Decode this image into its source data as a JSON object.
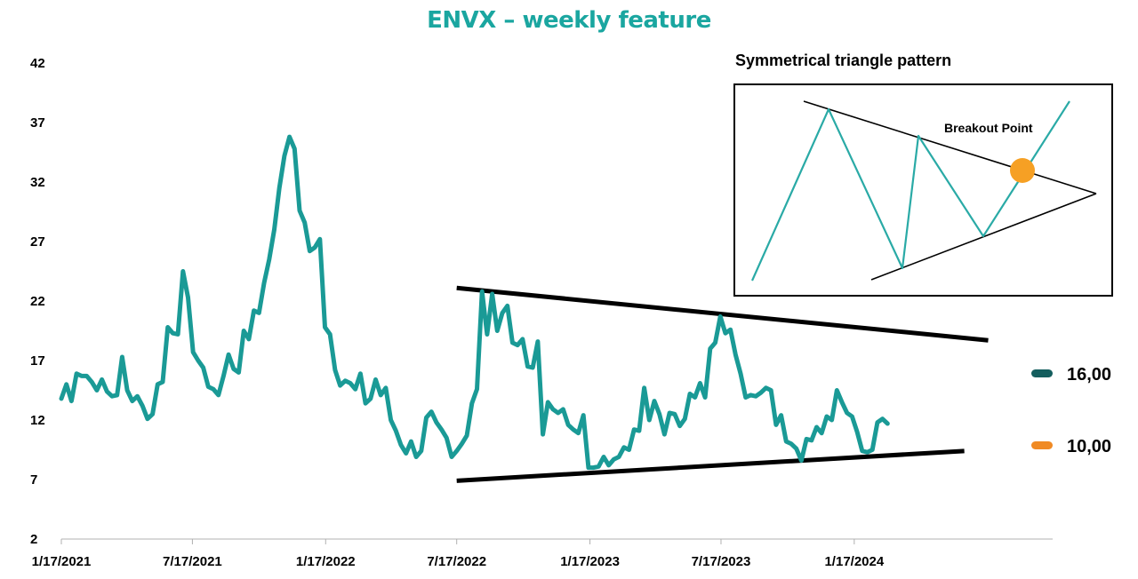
{
  "title": "ENVX – weekly feature",
  "colors": {
    "series": "#1a9a96",
    "trend": "#000000",
    "legend_dark": "#145e5e",
    "legend_orange": "#f08a24",
    "inset_line": "#2aaaa6",
    "breakout_dot": "#f6a024"
  },
  "chart_data": {
    "type": "line",
    "title": "ENVX – weekly feature",
    "xlabel": "",
    "ylabel": "",
    "x_tick_labels": [
      "1/17/2021",
      "7/17/2021",
      "1/17/2022",
      "7/17/2022",
      "1/17/2023",
      "7/17/2023",
      "1/17/2024"
    ],
    "xlim": [
      "2021-01-17",
      "2024-10-17"
    ],
    "y_ticks": [
      2,
      7,
      12,
      17,
      22,
      27,
      32,
      37,
      42
    ],
    "ylim": [
      2,
      42
    ],
    "grid": false,
    "series": [
      {
        "name": "",
        "points": [
          [
            "2021-01-17",
            13.8
          ],
          [
            "2021-01-24",
            15.0
          ],
          [
            "2021-01-31",
            13.6
          ],
          [
            "2021-02-07",
            15.9
          ],
          [
            "2021-02-14",
            15.7
          ],
          [
            "2021-02-21",
            15.7
          ],
          [
            "2021-02-28",
            15.2
          ],
          [
            "2021-03-07",
            14.5
          ],
          [
            "2021-03-14",
            15.4
          ],
          [
            "2021-03-21",
            14.4
          ],
          [
            "2021-03-28",
            14.0
          ],
          [
            "2021-04-04",
            14.1
          ],
          [
            "2021-04-11",
            17.3
          ],
          [
            "2021-04-18",
            14.5
          ],
          [
            "2021-04-25",
            13.6
          ],
          [
            "2021-05-02",
            14.0
          ],
          [
            "2021-05-09",
            13.2
          ],
          [
            "2021-05-16",
            12.1
          ],
          [
            "2021-05-23",
            12.5
          ],
          [
            "2021-05-30",
            15.0
          ],
          [
            "2021-06-06",
            15.2
          ],
          [
            "2021-06-13",
            19.8
          ],
          [
            "2021-06-20",
            19.3
          ],
          [
            "2021-06-27",
            19.2
          ],
          [
            "2021-07-04",
            24.5
          ],
          [
            "2021-07-11",
            22.3
          ],
          [
            "2021-07-18",
            17.7
          ],
          [
            "2021-07-25",
            17.0
          ],
          [
            "2021-08-01",
            16.4
          ],
          [
            "2021-08-08",
            14.8
          ],
          [
            "2021-08-15",
            14.6
          ],
          [
            "2021-08-22",
            14.1
          ],
          [
            "2021-08-29",
            15.7
          ],
          [
            "2021-09-05",
            17.5
          ],
          [
            "2021-09-12",
            16.3
          ],
          [
            "2021-09-19",
            16.0
          ],
          [
            "2021-09-26",
            19.5
          ],
          [
            "2021-10-03",
            18.8
          ],
          [
            "2021-10-10",
            21.2
          ],
          [
            "2021-10-17",
            21.0
          ],
          [
            "2021-10-24",
            23.5
          ],
          [
            "2021-10-31",
            25.5
          ],
          [
            "2021-11-07",
            28.0
          ],
          [
            "2021-11-14",
            31.5
          ],
          [
            "2021-11-21",
            34.2
          ],
          [
            "2021-11-28",
            35.8
          ],
          [
            "2021-12-05",
            34.8
          ],
          [
            "2021-12-12",
            29.6
          ],
          [
            "2021-12-19",
            28.6
          ],
          [
            "2021-12-26",
            26.2
          ],
          [
            "2022-01-02",
            26.5
          ],
          [
            "2022-01-09",
            27.2
          ],
          [
            "2022-01-16",
            19.8
          ],
          [
            "2022-01-23",
            19.2
          ],
          [
            "2022-01-30",
            16.2
          ],
          [
            "2022-02-06",
            14.9
          ],
          [
            "2022-02-13",
            15.3
          ],
          [
            "2022-02-20",
            15.1
          ],
          [
            "2022-02-27",
            14.6
          ],
          [
            "2022-03-06",
            15.9
          ],
          [
            "2022-03-13",
            13.4
          ],
          [
            "2022-03-20",
            13.8
          ],
          [
            "2022-03-27",
            15.4
          ],
          [
            "2022-04-03",
            14.1
          ],
          [
            "2022-04-10",
            14.7
          ],
          [
            "2022-04-17",
            12.0
          ],
          [
            "2022-04-24",
            11.1
          ],
          [
            "2022-05-01",
            9.9
          ],
          [
            "2022-05-08",
            9.2
          ],
          [
            "2022-05-15",
            10.2
          ],
          [
            "2022-05-22",
            8.9
          ],
          [
            "2022-05-29",
            9.4
          ],
          [
            "2022-06-05",
            12.2
          ],
          [
            "2022-06-12",
            12.7
          ],
          [
            "2022-06-19",
            11.8
          ],
          [
            "2022-06-26",
            11.2
          ],
          [
            "2022-07-03",
            10.5
          ],
          [
            "2022-07-10",
            8.9
          ],
          [
            "2022-07-17",
            9.4
          ],
          [
            "2022-07-24",
            10.0
          ],
          [
            "2022-07-31",
            10.7
          ],
          [
            "2022-08-07",
            13.4
          ],
          [
            "2022-08-14",
            14.6
          ],
          [
            "2022-08-21",
            22.8
          ],
          [
            "2022-08-28",
            19.2
          ],
          [
            "2022-09-04",
            22.6
          ],
          [
            "2022-09-11",
            19.5
          ],
          [
            "2022-09-18",
            21.0
          ],
          [
            "2022-09-25",
            21.6
          ],
          [
            "2022-10-02",
            18.5
          ],
          [
            "2022-10-09",
            18.3
          ],
          [
            "2022-10-16",
            18.8
          ],
          [
            "2022-10-23",
            16.5
          ],
          [
            "2022-10-30",
            16.4
          ],
          [
            "2022-11-06",
            18.6
          ],
          [
            "2022-11-13",
            10.8
          ],
          [
            "2022-11-20",
            13.5
          ],
          [
            "2022-11-27",
            12.9
          ],
          [
            "2022-12-04",
            12.6
          ],
          [
            "2022-12-11",
            12.9
          ],
          [
            "2022-12-18",
            11.6
          ],
          [
            "2022-12-25",
            11.2
          ],
          [
            "2023-01-01",
            10.9
          ],
          [
            "2023-01-08",
            12.4
          ],
          [
            "2023-01-15",
            8.0
          ],
          [
            "2023-01-22",
            8.0
          ],
          [
            "2023-01-29",
            8.1
          ],
          [
            "2023-02-05",
            8.9
          ],
          [
            "2023-02-12",
            8.2
          ],
          [
            "2023-02-19",
            8.7
          ],
          [
            "2023-02-26",
            8.9
          ],
          [
            "2023-03-05",
            9.7
          ],
          [
            "2023-03-12",
            9.5
          ],
          [
            "2023-03-19",
            11.2
          ],
          [
            "2023-03-26",
            11.1
          ],
          [
            "2023-04-02",
            14.7
          ],
          [
            "2023-04-09",
            12.0
          ],
          [
            "2023-04-16",
            13.6
          ],
          [
            "2023-04-23",
            12.5
          ],
          [
            "2023-04-30",
            10.8
          ],
          [
            "2023-05-07",
            12.6
          ],
          [
            "2023-05-14",
            12.5
          ],
          [
            "2023-05-21",
            11.5
          ],
          [
            "2023-05-28",
            12.1
          ],
          [
            "2023-06-04",
            14.2
          ],
          [
            "2023-06-11",
            13.9
          ],
          [
            "2023-06-18",
            15.1
          ],
          [
            "2023-06-25",
            13.9
          ],
          [
            "2023-07-02",
            18.0
          ],
          [
            "2023-07-09",
            18.5
          ],
          [
            "2023-07-16",
            20.7
          ],
          [
            "2023-07-23",
            19.3
          ],
          [
            "2023-07-30",
            19.6
          ],
          [
            "2023-08-06",
            17.5
          ],
          [
            "2023-08-13",
            15.9
          ],
          [
            "2023-08-20",
            13.9
          ],
          [
            "2023-08-27",
            14.1
          ],
          [
            "2023-09-03",
            14.0
          ],
          [
            "2023-09-10",
            14.3
          ],
          [
            "2023-09-17",
            14.7
          ],
          [
            "2023-09-24",
            14.5
          ],
          [
            "2023-10-01",
            11.6
          ],
          [
            "2023-10-08",
            12.4
          ],
          [
            "2023-10-15",
            10.2
          ],
          [
            "2023-10-22",
            10.0
          ],
          [
            "2023-10-29",
            9.6
          ],
          [
            "2023-11-05",
            8.6
          ],
          [
            "2023-11-12",
            10.4
          ],
          [
            "2023-11-19",
            10.3
          ],
          [
            "2023-11-26",
            11.4
          ],
          [
            "2023-12-03",
            10.9
          ],
          [
            "2023-12-10",
            12.3
          ],
          [
            "2023-12-17",
            12.0
          ],
          [
            "2023-12-24",
            14.5
          ],
          [
            "2023-12-31",
            13.5
          ],
          [
            "2024-01-07",
            12.6
          ],
          [
            "2024-01-14",
            12.3
          ],
          [
            "2024-01-21",
            11.0
          ],
          [
            "2024-01-28",
            9.4
          ],
          [
            "2024-02-04",
            9.3
          ],
          [
            "2024-02-11",
            9.5
          ],
          [
            "2024-02-18",
            11.8
          ],
          [
            "2024-02-25",
            12.1
          ],
          [
            "2024-03-03",
            11.7
          ]
        ]
      }
    ],
    "trendlines": [
      {
        "name": "upper",
        "from": [
          "2022-07-17",
          23.1
        ],
        "to": [
          "2024-07-20",
          18.7
        ]
      },
      {
        "name": "lower",
        "from": [
          "2022-07-17",
          6.9
        ],
        "to": [
          "2024-06-17",
          9.4
        ]
      }
    ],
    "legend": {
      "placement": "right",
      "entries": [
        {
          "label": "16,00",
          "color": "#145e5e"
        },
        {
          "label": "10,00",
          "color": "#f08a24"
        }
      ]
    }
  },
  "inset": {
    "title": "Symmetrical triangle pattern",
    "label": "Breakout Point"
  }
}
